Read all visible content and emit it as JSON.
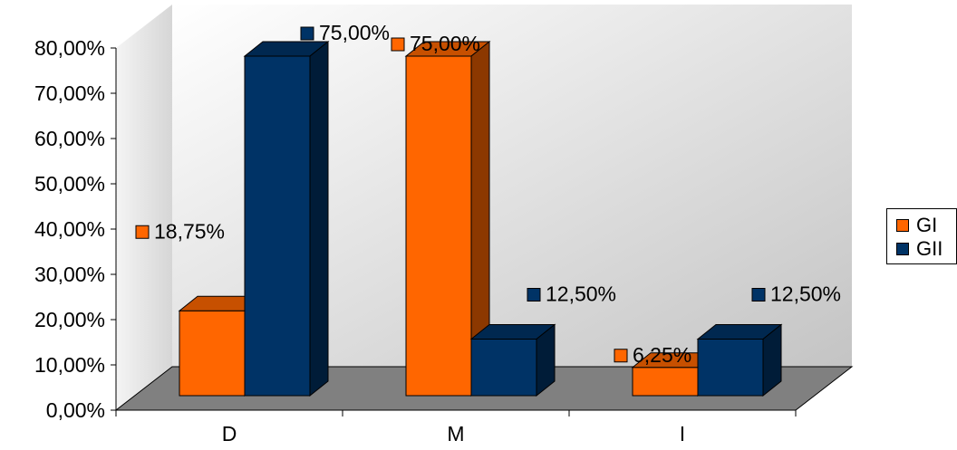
{
  "chart_data": {
    "type": "bar",
    "title": "",
    "xlabel": "",
    "ylabel": "",
    "categories": [
      "D",
      "M",
      "I"
    ],
    "series": [
      {
        "name": "GI",
        "values": [
          18.75,
          75.0,
          6.25
        ],
        "labels": [
          "18,75%",
          "75,00%",
          "6,25%"
        ],
        "color": "#FF6600"
      },
      {
        "name": "GII",
        "values": [
          75.0,
          12.5,
          12.5
        ],
        "labels": [
          "75,00%",
          "12,50%",
          "12,50%"
        ],
        "color": "#003366"
      }
    ],
    "ylim": [
      0,
      80
    ],
    "yticks": [
      "0,00%",
      "10,00%",
      "20,00%",
      "30,00%",
      "40,00%",
      "50,00%",
      "60,00%",
      "70,00%",
      "80,00%"
    ],
    "grid": false,
    "legend": "right",
    "three_d": true
  }
}
